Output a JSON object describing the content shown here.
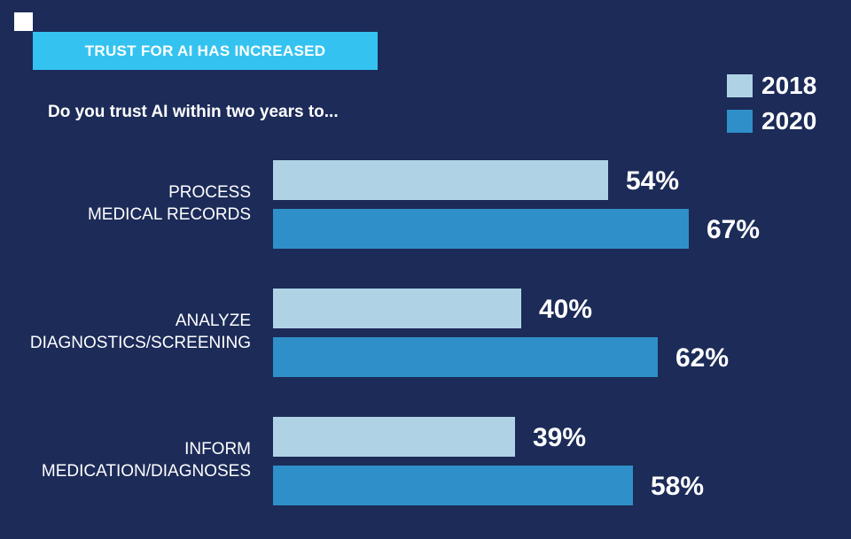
{
  "banner": {
    "title": "TRUST FOR AI HAS INCREASED"
  },
  "subtitle": "Do you trust AI within two years to...",
  "colors": {
    "background": "#1c2b58",
    "banner": "#34c3f0",
    "s2018": "#afd3e5",
    "s2020": "#2f8fc8"
  },
  "chart_data": {
    "type": "bar",
    "orientation": "horizontal",
    "title": "TRUST FOR AI HAS INCREASED",
    "subtitle": "Do you trust AI within two years to...",
    "categories": [
      [
        "PROCESS",
        "MEDICAL RECORDS"
      ],
      [
        "ANALYZE",
        "DIAGNOSTICS/SCREENING"
      ],
      [
        "INFORM",
        "MEDICATION/DIAGNOSES"
      ]
    ],
    "series": [
      {
        "name": "2018",
        "values": [
          54,
          40,
          39
        ],
        "labels": [
          "54%",
          "40%",
          "39%"
        ],
        "color": "#afd3e5"
      },
      {
        "name": "2020",
        "values": [
          67,
          62,
          58
        ],
        "labels": [
          "67%",
          "62%",
          "58%"
        ],
        "color": "#2f8fc8"
      }
    ],
    "unit": "%",
    "legend": "top-right"
  }
}
